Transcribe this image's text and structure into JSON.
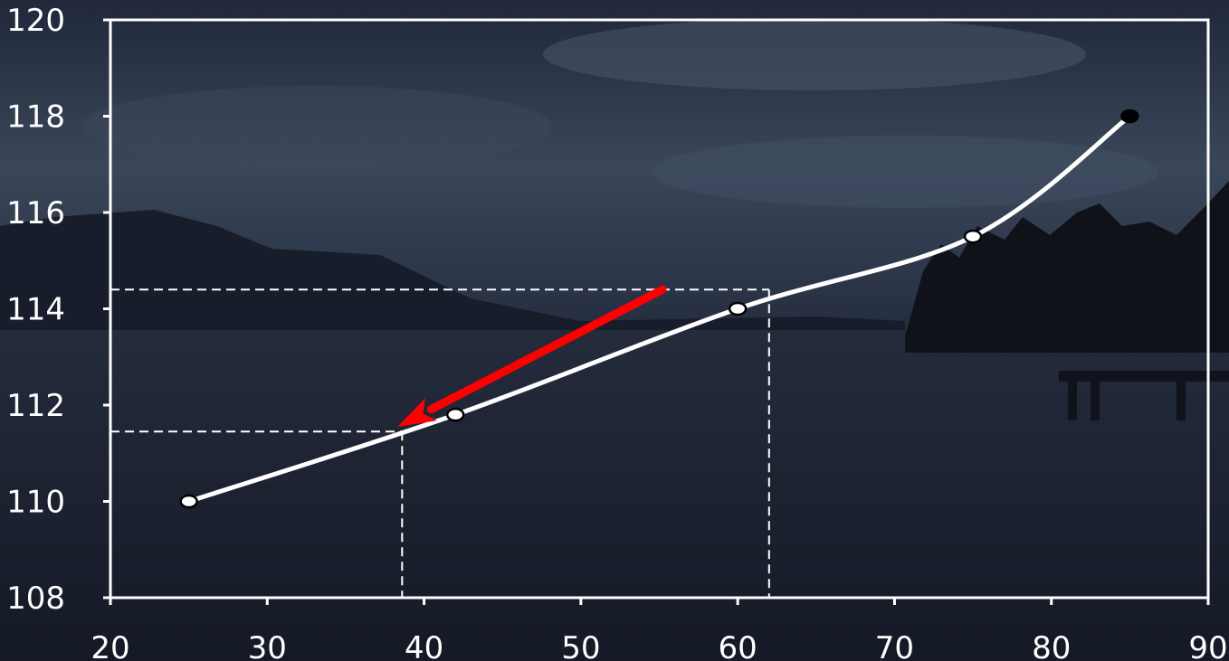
{
  "chart_data": {
    "type": "line",
    "title": "",
    "xlabel": "",
    "ylabel": "",
    "xlim": [
      20,
      90
    ],
    "ylim": [
      108,
      120
    ],
    "x_ticks": [
      20,
      30,
      40,
      50,
      60,
      70,
      80,
      90
    ],
    "y_ticks": [
      108,
      110,
      112,
      114,
      116,
      118,
      120
    ],
    "grid": false,
    "legend": "none",
    "series": [
      {
        "x": [
          25,
          42,
          60,
          75,
          85
        ],
        "y": [
          110,
          111.8,
          114,
          115.5,
          118
        ],
        "marker_fill": [
          "#ffffff",
          "#ffffff",
          "#ffffff",
          "#ffffff",
          "#000000"
        ],
        "color": "#ffffff"
      }
    ],
    "reference_lines": [
      {
        "x": 62,
        "y": 114.4
      },
      {
        "x": 38.6,
        "y": 111.45
      }
    ],
    "annotations": [
      {
        "type": "arrow",
        "from": [
          55.2,
          114.4
        ],
        "to": [
          38.3,
          111.55
        ],
        "color": "#ff0000"
      }
    ],
    "background": "dusk lake landscape photo"
  }
}
